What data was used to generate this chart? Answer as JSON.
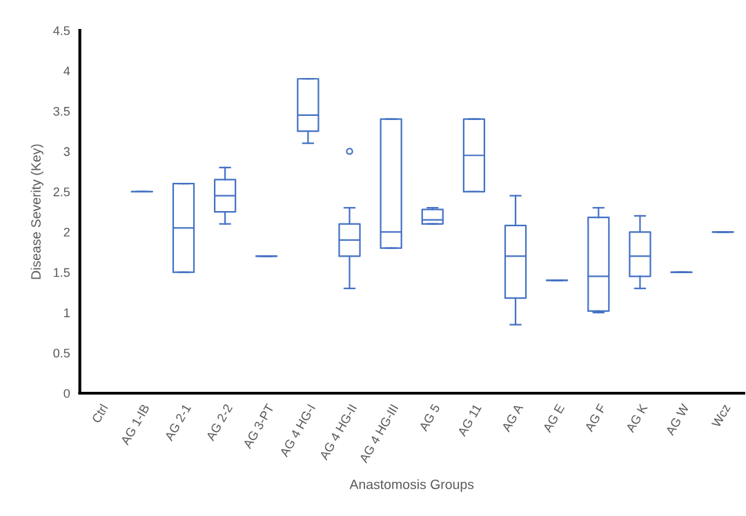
{
  "chart_data": {
    "type": "box",
    "xlabel": "Anastomosis Groups",
    "ylabel": "Disease Severity (Key)",
    "categories": [
      "Ctrl",
      "AG 1-IB",
      "AG 2-1",
      "AG 2-2",
      "AG 3-PT",
      "AG 4 HG-I",
      "AG 4 HG-II",
      "AG 4 HG-III",
      "AG 5",
      "AG 11",
      "AG A",
      "AG E",
      "AG F",
      "AG K",
      "AG W",
      "Wcz"
    ],
    "color": "#4472c4",
    "boxes": [
      null,
      {
        "low": 2.5,
        "q1": 2.5,
        "median": 2.5,
        "q3": 2.5,
        "high": 2.5
      },
      {
        "low": 1.5,
        "q1": 1.5,
        "median": 2.05,
        "q3": 2.6,
        "high": 2.6
      },
      {
        "low": 2.1,
        "q1": 2.25,
        "median": 2.45,
        "q3": 2.65,
        "high": 2.8
      },
      {
        "low": 1.7,
        "q1": 1.7,
        "median": 1.7,
        "q3": 1.7,
        "high": 1.7
      },
      {
        "low": 3.1,
        "q1": 3.25,
        "median": 3.45,
        "q3": 3.9,
        "high": 3.9
      },
      {
        "low": 1.3,
        "q1": 1.7,
        "median": 1.9,
        "q3": 2.1,
        "high": 2.3,
        "outliers": [
          3.0
        ]
      },
      {
        "low": 1.8,
        "q1": 1.8,
        "median": 2.0,
        "q3": 3.4,
        "high": 3.4
      },
      {
        "low": 2.1,
        "q1": 2.1,
        "median": 2.15,
        "q3": 2.28,
        "high": 2.3
      },
      {
        "low": 2.5,
        "q1": 2.5,
        "median": 2.95,
        "q3": 3.4,
        "high": 3.4
      },
      {
        "low": 0.85,
        "q1": 1.18,
        "median": 1.7,
        "q3": 2.08,
        "high": 2.45
      },
      {
        "low": 1.4,
        "q1": 1.4,
        "median": 1.4,
        "q3": 1.4,
        "high": 1.4
      },
      {
        "low": 1.0,
        "q1": 1.02,
        "median": 1.45,
        "q3": 2.18,
        "high": 2.3
      },
      {
        "low": 1.3,
        "q1": 1.45,
        "median": 1.7,
        "q3": 2.0,
        "high": 2.2
      },
      {
        "low": 1.5,
        "q1": 1.5,
        "median": 1.5,
        "q3": 1.5,
        "high": 1.5
      },
      {
        "low": 2.0,
        "q1": 2.0,
        "median": 2.0,
        "q3": 2.0,
        "high": 2.0
      }
    ],
    "ylim": [
      0,
      4.5
    ],
    "yticks": [
      0,
      0.5,
      1,
      1.5,
      2,
      2.5,
      3,
      3.5,
      4,
      4.5
    ],
    "grid": false,
    "legend": false
  }
}
